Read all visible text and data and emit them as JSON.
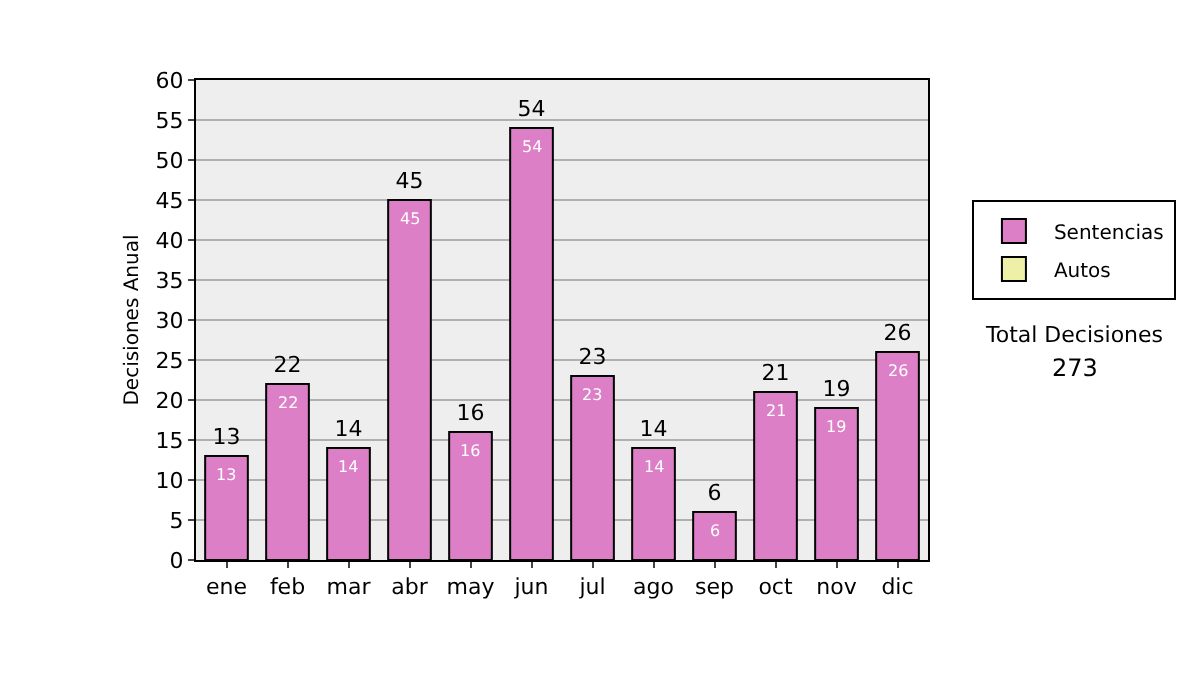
{
  "chart_data": {
    "type": "bar",
    "ylabel": "Decisiones Anual",
    "categories": [
      "ene",
      "feb",
      "mar",
      "abr",
      "may",
      "jun",
      "jul",
      "ago",
      "sep",
      "oct",
      "nov",
      "dic"
    ],
    "series": [
      {
        "name": "Sentencias",
        "color": "#dc7fc6",
        "values": [
          13,
          22,
          14,
          45,
          16,
          54,
          23,
          14,
          6,
          21,
          19,
          26
        ]
      },
      {
        "name": "Autos",
        "color": "#eef0a8",
        "values": [
          null,
          null,
          null,
          null,
          null,
          null,
          null,
          null,
          null,
          null,
          null,
          null
        ]
      }
    ],
    "ylim": [
      0,
      60
    ],
    "yticks": [
      0,
      5,
      10,
      15,
      20,
      25,
      30,
      35,
      40,
      45,
      50,
      55,
      60
    ],
    "grid": "y",
    "legend": "right",
    "data_labels": true,
    "annotations": [
      "Total Decisiones",
      "273",
      {
        "text": "13",
        "x": "ene",
        "y": 13
      },
      {
        "text": "22",
        "x": "feb",
        "y": 22
      },
      {
        "text": "14",
        "x": "mar",
        "y": 14
      },
      {
        "text": "45",
        "x": "abr",
        "y": 45
      },
      {
        "text": "16",
        "x": "may",
        "y": 16
      },
      {
        "text": "54",
        "x": "jun",
        "y": 54
      },
      {
        "text": "23",
        "x": "jul",
        "y": 23
      },
      {
        "text": "14",
        "x": "ago",
        "y": 14
      },
      {
        "text": "6",
        "x": "sep",
        "y": 6
      },
      {
        "text": "21",
        "x": "oct",
        "y": 21
      },
      {
        "text": "19",
        "x": "nov",
        "y": 19
      },
      {
        "text": "26",
        "x": "dic",
        "y": 26
      }
    ]
  }
}
